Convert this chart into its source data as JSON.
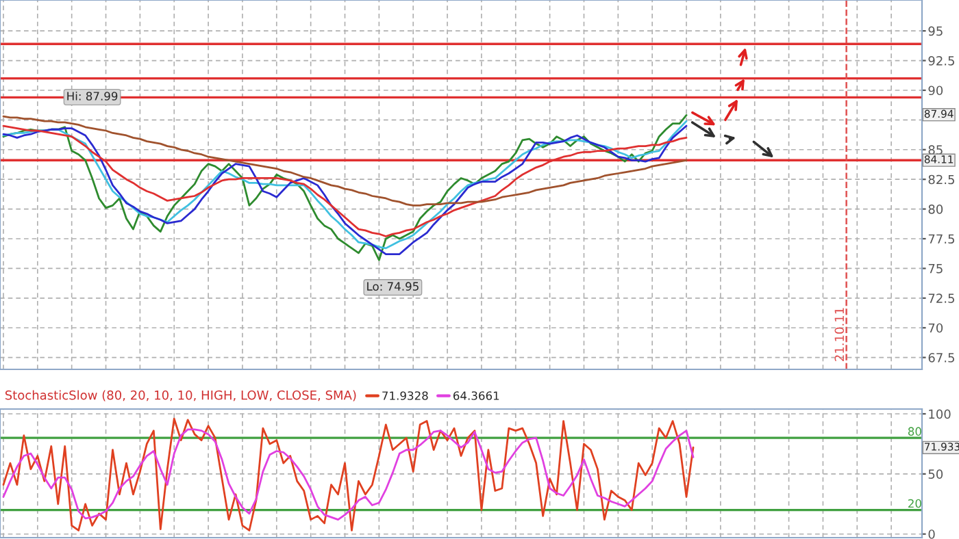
{
  "chart_data": [
    {
      "type": "line",
      "categories": [
        null,
        null,
        null,
        null,
        null,
        null,
        null,
        null,
        null,
        null,
        null,
        null,
        null,
        null,
        null,
        null,
        null,
        null,
        null,
        null,
        null,
        null,
        null,
        null,
        null,
        null,
        null,
        null,
        null,
        null,
        null,
        null,
        null,
        null,
        null,
        null,
        null,
        null,
        null,
        null,
        null,
        null,
        null,
        null,
        null,
        null,
        null,
        null,
        null,
        null,
        null,
        null,
        null,
        null,
        null,
        null,
        null,
        null,
        null,
        null,
        null,
        null,
        null,
        null,
        null,
        null,
        null,
        null,
        null,
        null,
        null,
        null,
        null,
        null,
        null,
        null,
        null,
        null,
        null,
        null,
        null,
        null,
        null,
        null,
        null,
        null,
        null,
        null,
        null,
        null,
        null,
        null,
        null,
        null,
        null,
        null,
        null,
        null,
        null,
        null,
        null,
        null,
        null,
        null,
        null,
        null,
        null,
        null,
        null,
        null,
        null,
        null,
        null,
        null,
        null,
        null,
        null,
        null,
        null,
        null,
        null,
        null,
        null,
        null,
        null,
        null,
        null,
        null,
        null,
        null,
        null,
        null,
        null,
        null,
        null
      ],
      "series": [
        {
          "color": "#2e8b2e",
          "values": [
            86.1,
            86.3,
            86.4,
            86.6,
            86.7,
            86.6,
            86.6,
            86.7,
            86.7,
            86.9,
            84.9,
            84.6,
            84.1,
            82.6,
            80.9,
            80.1,
            80.3,
            80.9,
            79.2,
            78.3,
            79.8,
            79.4,
            78.6,
            78.1,
            79.4,
            80.3,
            80.9,
            81.5,
            82.1,
            83.2,
            83.8,
            83.6,
            83.2,
            83.8,
            83.2,
            82.6,
            80.3,
            80.9,
            81.7,
            82.1,
            82.9,
            82.6,
            82.4,
            82.1,
            81.5,
            80.3,
            79.2,
            78.6,
            78.3,
            77.5,
            77.1,
            76.7,
            76.3,
            77.1,
            76.9,
            75.7,
            77.5,
            77.8,
            77.5,
            77.8,
            78.1,
            79.2,
            79.8,
            80.3,
            80.6,
            81.5,
            82.1,
            82.6,
            82.4,
            82.1,
            82.6,
            82.9,
            83.2,
            83.8,
            84.0,
            84.7,
            85.8,
            85.9,
            85.5,
            85.2,
            85.5,
            86.1,
            85.8,
            85.3,
            85.8,
            86.1,
            85.5,
            85.2,
            84.9,
            84.7,
            84.4,
            84.0,
            84.6,
            84.0,
            84.7,
            84.9,
            86.1,
            86.7,
            87.2,
            87.2,
            87.9,
            null,
            null,
            null,
            null,
            null,
            null,
            null,
            null,
            null,
            null,
            null,
            null,
            null,
            null,
            null,
            null,
            null,
            null,
            null,
            null,
            null,
            null,
            null,
            null,
            null,
            null,
            null,
            null,
            null,
            null,
            null,
            null,
            null,
            null
          ]
        },
        {
          "color": "#40c0e0",
          "values": [
            86.2,
            86.3,
            86.4,
            86.4,
            86.5,
            86.6,
            86.6,
            86.7,
            86.7,
            86.4,
            86.1,
            85.8,
            85.5,
            84.5,
            83.5,
            82.5,
            81.5,
            81.0,
            80.6,
            80.1,
            79.6,
            79.4,
            79.3,
            79.1,
            78.9,
            79.4,
            79.9,
            80.3,
            80.8,
            81.4,
            82.0,
            82.6,
            83.2,
            83.0,
            82.7,
            82.5,
            82.2,
            82.2,
            82.1,
            82.1,
            82.0,
            82.0,
            82.0,
            82.0,
            82.0,
            81.4,
            80.7,
            80.1,
            79.4,
            78.9,
            78.3,
            77.8,
            77.2,
            77.1,
            77.0,
            76.8,
            76.7,
            77.0,
            77.3,
            77.5,
            77.8,
            78.3,
            78.8,
            79.3,
            79.8,
            80.4,
            80.9,
            81.5,
            82.0,
            82.2,
            82.3,
            82.5,
            82.6,
            83.1,
            83.6,
            84.1,
            84.6,
            84.9,
            85.1,
            85.4,
            85.6,
            85.7,
            85.7,
            85.8,
            85.8,
            85.7,
            85.6,
            85.4,
            85.3,
            85.1,
            84.8,
            84.6,
            84.3,
            84.5,
            84.6,
            84.8,
            84.9,
            85.5,
            86.2,
            86.8,
            87.4,
            null,
            null,
            null,
            null,
            null,
            null,
            null,
            null,
            null,
            null,
            null,
            null,
            null,
            null,
            null,
            null,
            null,
            null,
            null,
            null,
            null,
            null,
            null,
            null,
            null,
            null,
            null,
            null,
            null,
            null,
            null,
            null,
            null,
            null
          ]
        },
        {
          "color": "#2a2ad0",
          "values": [
            86.3,
            86.2,
            86.0,
            86.2,
            86.3,
            86.5,
            86.6,
            86.7,
            86.7,
            86.8,
            86.8,
            86.5,
            86.2,
            85.4,
            84.5,
            83.3,
            82.0,
            81.3,
            80.5,
            80.2,
            79.8,
            79.6,
            79.3,
            79.1,
            78.8,
            78.9,
            79.0,
            79.5,
            80.0,
            80.8,
            81.5,
            82.3,
            83.0,
            83.4,
            83.8,
            83.7,
            83.6,
            82.6,
            81.5,
            81.3,
            81.0,
            81.6,
            82.2,
            82.4,
            82.6,
            82.3,
            82.0,
            81.2,
            80.3,
            79.6,
            78.8,
            78.3,
            77.8,
            77.4,
            77.0,
            76.6,
            76.2,
            76.2,
            76.2,
            76.7,
            77.2,
            77.6,
            78.0,
            78.7,
            79.3,
            79.9,
            80.4,
            81.1,
            81.8,
            82.1,
            82.3,
            82.3,
            82.3,
            82.7,
            83.0,
            83.4,
            83.8,
            84.7,
            85.6,
            85.6,
            85.5,
            85.6,
            85.7,
            86.0,
            86.2,
            85.9,
            85.6,
            85.4,
            85.2,
            84.8,
            84.4,
            84.3,
            84.1,
            84.1,
            84.0,
            84.2,
            84.3,
            85.2,
            86.0,
            86.5,
            87.0,
            null,
            null,
            null,
            null,
            null,
            null,
            null,
            null,
            null,
            null,
            null,
            null,
            null,
            null,
            null,
            null,
            null,
            null,
            null,
            null,
            null,
            null,
            null,
            null,
            null,
            null,
            null,
            null,
            null,
            null,
            null,
            null,
            null,
            null
          ]
        },
        {
          "color": "#e03030",
          "values": [
            87.0,
            86.9,
            86.8,
            86.7,
            86.6,
            86.6,
            86.5,
            86.4,
            86.3,
            86.2,
            86.1,
            85.7,
            85.3,
            84.8,
            84.4,
            84.0,
            83.3,
            82.9,
            82.5,
            82.2,
            81.8,
            81.5,
            81.3,
            81.0,
            80.7,
            80.8,
            80.9,
            81.0,
            81.1,
            81.4,
            81.8,
            82.1,
            82.4,
            82.5,
            82.5,
            82.6,
            82.6,
            82.6,
            82.6,
            82.6,
            82.6,
            82.5,
            82.4,
            82.2,
            82.1,
            81.7,
            81.2,
            80.8,
            80.3,
            79.8,
            79.3,
            78.8,
            78.3,
            78.2,
            78.0,
            77.9,
            77.7,
            77.9,
            78.0,
            78.2,
            78.3,
            78.6,
            78.9,
            79.1,
            79.4,
            79.6,
            79.9,
            80.1,
            80.3,
            80.5,
            80.7,
            80.9,
            81.1,
            81.6,
            82.0,
            82.5,
            82.9,
            83.2,
            83.5,
            83.7,
            84.0,
            84.2,
            84.4,
            84.5,
            84.7,
            84.8,
            84.8,
            84.9,
            84.9,
            85.0,
            85.1,
            85.1,
            85.2,
            85.3,
            85.3,
            85.4,
            85.4,
            85.6,
            85.7,
            85.9,
            86.0,
            null,
            null,
            null,
            null,
            null,
            null,
            null,
            null,
            null,
            null,
            null,
            null,
            null,
            null,
            null,
            null,
            null,
            null,
            null,
            null,
            null,
            null,
            null,
            null,
            null,
            null,
            null,
            null,
            null,
            null,
            null,
            null,
            null,
            null
          ]
        },
        {
          "color": "#a0522d",
          "values": [
            87.8,
            87.7,
            87.7,
            87.6,
            87.6,
            87.5,
            87.4,
            87.4,
            87.3,
            87.3,
            87.2,
            87.1,
            86.9,
            86.8,
            86.7,
            86.6,
            86.4,
            86.3,
            86.2,
            86.0,
            85.9,
            85.7,
            85.6,
            85.5,
            85.3,
            85.2,
            85.0,
            84.9,
            84.7,
            84.6,
            84.4,
            84.3,
            84.2,
            84.1,
            84.0,
            83.9,
            83.8,
            83.7,
            83.6,
            83.5,
            83.4,
            83.2,
            83.1,
            82.9,
            82.7,
            82.6,
            82.4,
            82.2,
            82.0,
            81.9,
            81.7,
            81.6,
            81.4,
            81.3,
            81.1,
            81.0,
            80.9,
            80.7,
            80.6,
            80.4,
            80.3,
            80.3,
            80.4,
            80.4,
            80.4,
            80.5,
            80.5,
            80.5,
            80.6,
            80.6,
            80.6,
            80.7,
            80.8,
            81.0,
            81.1,
            81.2,
            81.3,
            81.4,
            81.6,
            81.7,
            81.8,
            81.9,
            82.0,
            82.2,
            82.3,
            82.4,
            82.5,
            82.6,
            82.8,
            82.9,
            83.0,
            83.1,
            83.2,
            83.3,
            83.4,
            83.6,
            83.7,
            83.8,
            83.9,
            84.0,
            84.1,
            null,
            null,
            null,
            null,
            null,
            null,
            null,
            null,
            null,
            null,
            null,
            null,
            null,
            null,
            null,
            null,
            null,
            null,
            null,
            null,
            null,
            null,
            null,
            null,
            null,
            null,
            null,
            null,
            null,
            null,
            null,
            null,
            null,
            null
          ]
        }
      ],
      "ylim": [
        66.5,
        97.6
      ],
      "yticks": [
        67.5,
        70,
        72.5,
        75,
        77.5,
        80,
        82.5,
        85,
        {
          "value": 87.5,
          "label": null
        },
        90,
        92.5,
        95
      ],
      "tick_labels": "y",
      "grid": true,
      "ref_lines": [
        {
          "axis": "y",
          "value": 93.9,
          "color": "#e03030"
        },
        {
          "axis": "y",
          "value": 91.0,
          "color": "#e03030"
        },
        {
          "axis": "y",
          "value": 89.4,
          "color": "#e03030"
        },
        {
          "axis": "y",
          "value": 84.11,
          "color": "#e03030"
        }
      ],
      "annotations": [
        "Hi: 87.99",
        "Lo: 74.95",
        "21.10.11",
        {
          "text": "87.94",
          "y": 87.94
        },
        {
          "text": "84.11",
          "y": 84.11
        }
      ]
    },
    {
      "type": "line",
      "title": "StochasticSlow (80, 20, 10, 10, HIGH, LOW, CLOSE, SMA)",
      "legend": "top left",
      "categories": [
        null,
        null,
        null,
        null,
        null,
        null,
        null,
        null,
        null,
        null,
        null,
        null,
        null,
        null,
        null,
        null,
        null,
        null,
        null,
        null,
        null,
        null,
        null,
        null,
        null,
        null,
        null,
        null,
        null,
        null,
        null,
        null,
        null,
        null,
        null,
        null,
        null,
        null,
        null,
        null,
        null,
        null,
        null,
        null,
        null,
        null,
        null,
        null,
        null,
        null,
        null,
        null,
        null,
        null,
        null,
        null,
        null,
        null,
        null,
        null,
        null,
        null,
        null,
        null,
        null,
        null,
        null,
        null,
        null,
        null,
        null,
        null,
        null,
        null,
        null,
        null,
        null,
        null,
        null,
        null,
        null,
        null,
        null,
        null,
        null,
        null,
        null,
        null,
        null,
        null,
        null,
        null,
        null,
        null,
        null,
        null,
        null,
        null,
        null,
        null,
        null,
        null,
        null,
        null,
        null,
        null,
        null,
        null,
        null,
        null,
        null,
        null,
        null,
        null,
        null,
        null,
        null,
        null,
        null,
        null,
        null,
        null,
        null,
        null,
        null,
        null,
        null,
        null,
        null,
        null,
        null,
        null,
        null,
        null,
        null
      ],
      "series": [
        {
          "name": "71.9328",
          "color": "#e04020",
          "values": [
            41,
            59,
            41,
            82,
            54,
            65,
            44,
            73,
            25,
            73,
            7,
            3,
            25,
            7,
            17,
            12,
            70,
            33,
            59,
            33,
            52,
            75,
            86,
            4,
            54,
            96,
            78,
            95,
            83,
            78,
            90,
            80,
            46,
            12,
            33,
            7,
            3,
            28,
            88,
            75,
            78,
            59,
            65,
            44,
            36,
            12,
            15,
            9,
            41,
            33,
            59,
            3,
            44,
            33,
            41,
            65,
            91,
            70,
            75,
            80,
            52,
            91,
            94,
            70,
            86,
            78,
            88,
            65,
            80,
            86,
            20,
            70,
            36,
            38,
            88,
            86,
            88,
            75,
            59,
            15,
            46,
            33,
            94,
            59,
            20,
            75,
            70,
            54,
            12,
            36,
            31,
            28,
            20,
            59,
            49,
            59,
            88,
            80,
            94,
            75,
            31,
            72,
            null,
            null,
            null,
            null,
            null,
            null,
            null,
            null,
            null,
            null,
            null,
            null,
            null,
            null,
            null,
            null,
            null,
            null,
            null,
            null,
            null,
            null,
            null,
            null,
            null,
            null,
            null,
            null,
            null,
            null,
            null,
            null,
            null
          ]
        },
        {
          "name": "64.3661",
          "color": "#e040e0",
          "values": [
            31,
            44,
            56,
            65,
            67,
            58,
            47,
            38,
            47,
            47,
            37,
            19,
            13,
            14,
            16,
            19,
            26,
            38,
            44,
            48,
            57,
            65,
            69,
            54,
            41,
            67,
            82,
            87,
            87,
            86,
            83,
            77,
            62,
            42,
            31,
            22,
            17,
            29,
            52,
            66,
            69,
            68,
            63,
            56,
            48,
            37,
            23,
            16,
            14,
            12,
            16,
            21,
            28,
            31,
            24,
            26,
            37,
            51,
            67,
            70,
            70,
            74,
            79,
            85,
            86,
            82,
            77,
            72,
            76,
            85,
            70,
            54,
            51,
            52,
            61,
            69,
            76,
            79,
            80,
            61,
            38,
            34,
            32,
            40,
            49,
            62,
            46,
            32,
            30,
            27,
            25,
            23,
            28,
            33,
            38,
            44,
            58,
            71,
            77,
            82,
            86,
            64,
            null,
            null,
            null,
            null,
            null,
            null,
            null,
            null,
            null,
            null,
            null,
            null,
            null,
            null,
            null,
            null,
            null,
            null,
            null,
            null,
            null,
            null,
            null,
            null,
            null,
            null,
            null,
            null,
            null,
            null,
            null,
            null,
            null
          ]
        }
      ],
      "ylim": [
        -3,
        104
      ],
      "yticks": [
        0,
        50,
        100
      ],
      "tick_labels": "y",
      "grid": true,
      "ref_lines": [
        {
          "axis": "y",
          "value": 80,
          "label": "80",
          "color": "#40a040"
        },
        {
          "axis": "y",
          "value": 20,
          "label": "20",
          "color": "#40a040"
        }
      ],
      "annotations": [
        {
          "text": "71.933",
          "y": 71.933
        }
      ]
    }
  ]
}
